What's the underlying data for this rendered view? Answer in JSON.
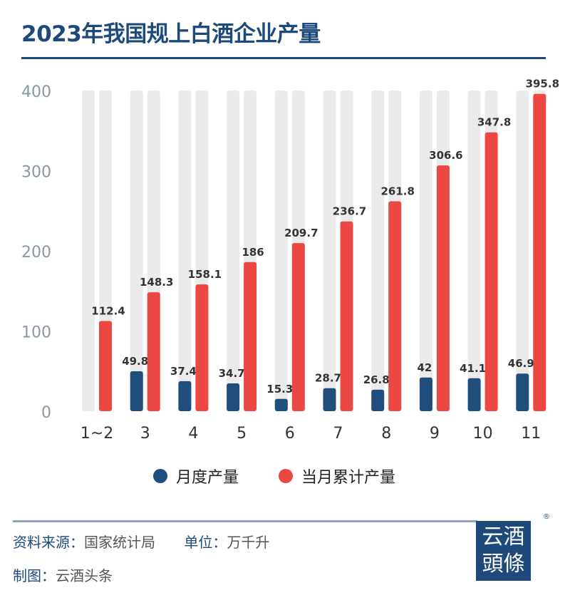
{
  "title": "2023年我国规上白酒企业产量",
  "chart_data": {
    "type": "bar",
    "categories": [
      "1~2",
      "3",
      "4",
      "5",
      "6",
      "7",
      "8",
      "9",
      "10",
      "11"
    ],
    "series": [
      {
        "name": "月度产量",
        "color": "#1f4e7d",
        "values": [
          null,
          49.8,
          37.4,
          34.7,
          15.3,
          28.7,
          26.8,
          42,
          41.1,
          46.9
        ]
      },
      {
        "name": "当月累计产量",
        "color": "#ec4843",
        "values": [
          112.4,
          148.3,
          158.1,
          186,
          209.7,
          236.7,
          261.8,
          306.6,
          347.8,
          395.8
        ]
      }
    ],
    "yticks": [
      0,
      100,
      200,
      300,
      400
    ],
    "ylim": [
      0,
      400
    ],
    "background_track_color": "#ebebeb",
    "legend": "bottom",
    "grid": false
  },
  "footer": {
    "source_label": "资料来源：",
    "source": "国家统计局",
    "unit_label": "单位：",
    "unit": "万千升",
    "maker_label": "制图：",
    "maker": "云酒头条"
  },
  "logo": {
    "line1": "云酒",
    "line2": "頭條",
    "reg": "®"
  }
}
